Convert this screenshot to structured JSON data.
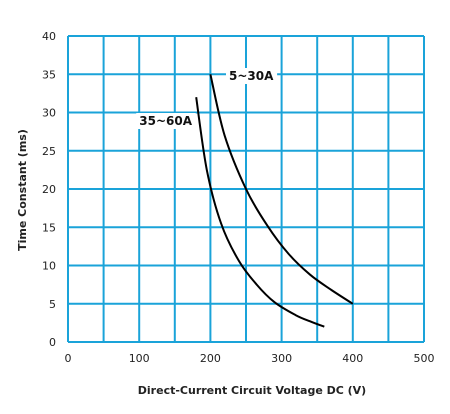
{
  "chart_data": {
    "type": "line",
    "title": "",
    "xlabel": "Direct-Current Circuit Voltage DC (V)",
    "ylabel": "Time Constant (ms)",
    "xlim": [
      0,
      500
    ],
    "ylim": [
      0,
      40
    ],
    "x_ticks": [
      0,
      50,
      100,
      150,
      200,
      250,
      300,
      350,
      400,
      450,
      500
    ],
    "x_tick_labels": [
      "0",
      "100",
      "200",
      "300",
      "400",
      "500"
    ],
    "y_ticks": [
      0,
      5,
      10,
      15,
      20,
      25,
      30,
      35,
      40
    ],
    "y_tick_labels": [
      "0",
      "5",
      "10",
      "15",
      "20",
      "25",
      "30",
      "35",
      "40"
    ],
    "grid": true,
    "grid_color": "#1aa3d9",
    "line_color": "#000000",
    "series": [
      {
        "name": "5~30A",
        "x": [
          200,
          220,
          250,
          280,
          310,
          340,
          370,
          400
        ],
        "y": [
          35,
          27,
          20,
          15.2,
          11.5,
          8.8,
          6.8,
          5
        ]
      },
      {
        "name": "35~60A",
        "x": [
          180,
          195,
          215,
          240,
          265,
          290,
          320,
          340,
          360
        ],
        "y": [
          32,
          22.5,
          15.5,
          10.6,
          7.5,
          5.2,
          3.5,
          2.7,
          2
        ]
      }
    ]
  }
}
